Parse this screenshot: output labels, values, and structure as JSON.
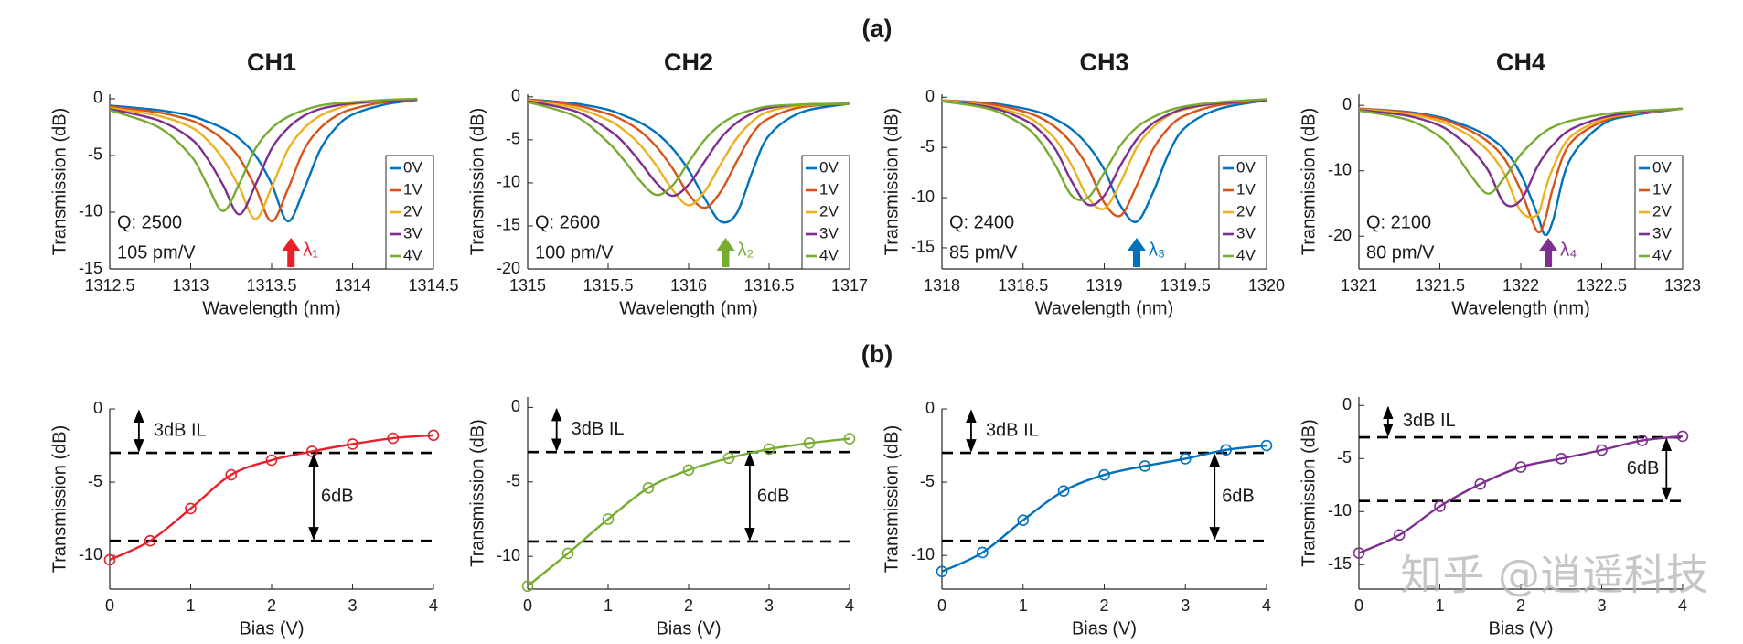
{
  "panel_labels": [
    "(a)",
    "(b)"
  ],
  "watermark": "知乎 @逍遥科技",
  "chart_data": [
    {
      "type": "line",
      "title": "CH1",
      "xlabel": "Wavelength (nm)",
      "ylabel": "Transmission (dB)",
      "x": [
        1312.5,
        1312.8,
        1313.0,
        1313.1,
        1313.2,
        1313.3,
        1313.4,
        1313.5,
        1313.6,
        1313.7,
        1313.8,
        1313.9,
        1314.0,
        1314.2,
        1314.4
      ],
      "series": [
        {
          "name": "0V",
          "color": "#0072BD",
          "values": [
            -0.6,
            -1.0,
            -1.5,
            -2.0,
            -2.6,
            -3.5,
            -5.0,
            -7.5,
            -10.8,
            -8.0,
            -4.5,
            -2.5,
            -1.4,
            -0.5,
            -0.1
          ]
        },
        {
          "name": "1V",
          "color": "#D95319",
          "values": [
            -0.7,
            -1.2,
            -1.9,
            -2.6,
            -3.6,
            -5.2,
            -7.8,
            -10.8,
            -8.0,
            -4.5,
            -2.6,
            -1.5,
            -0.9,
            -0.3,
            -0.1
          ]
        },
        {
          "name": "2V",
          "color": "#EDB120",
          "values": [
            -0.8,
            -1.5,
            -2.5,
            -3.6,
            -5.3,
            -7.8,
            -10.6,
            -7.8,
            -4.5,
            -2.6,
            -1.5,
            -0.9,
            -0.5,
            -0.2,
            -0.1
          ]
        },
        {
          "name": "3V",
          "color": "#7E2F8E",
          "values": [
            -0.9,
            -1.9,
            -3.5,
            -5.2,
            -7.6,
            -10.2,
            -7.6,
            -4.4,
            -2.6,
            -1.5,
            -0.9,
            -0.6,
            -0.4,
            -0.2,
            -0.1
          ]
        },
        {
          "name": "4V",
          "color": "#77AC30",
          "values": [
            -1.0,
            -2.5,
            -5.0,
            -7.5,
            -9.9,
            -7.5,
            -4.4,
            -2.6,
            -1.6,
            -1.0,
            -0.6,
            -0.4,
            -0.3,
            -0.1,
            0
          ]
        }
      ],
      "xlim": [
        1312.5,
        1314.5
      ],
      "xticks": [
        1312.5,
        1313,
        1313.5,
        1314,
        1314.5
      ],
      "ylim": [
        -15,
        0.4
      ],
      "yticks": [
        0,
        -5,
        -10,
        -15
      ],
      "legend": "lower right",
      "annotations": [
        "Q: 2500",
        "105 pm/V"
      ],
      "marker": {
        "label": "λ₁",
        "x": 1313.62,
        "color": "#E8202A"
      }
    },
    {
      "type": "line",
      "title": "CH2",
      "xlabel": "Wavelength (nm)",
      "ylabel": "Transmission (dB)",
      "x": [
        1315,
        1315.3,
        1315.5,
        1315.6,
        1315.7,
        1315.8,
        1315.9,
        1316.0,
        1316.1,
        1316.2,
        1316.3,
        1316.4,
        1316.5,
        1316.7,
        1317
      ],
      "series": [
        {
          "name": "0V",
          "color": "#0072BD",
          "values": [
            -0.3,
            -0.8,
            -1.5,
            -2.2,
            -3.0,
            -4.2,
            -6.0,
            -8.5,
            -11.8,
            -14.5,
            -13.5,
            -8.5,
            -4.5,
            -1.8,
            -0.8
          ]
        },
        {
          "name": "1V",
          "color": "#D95319",
          "values": [
            -0.3,
            -1.0,
            -2.0,
            -2.8,
            -4.0,
            -5.8,
            -8.3,
            -11.3,
            -12.9,
            -11.0,
            -7.5,
            -4.2,
            -2.5,
            -1.2,
            -0.8
          ]
        },
        {
          "name": "2V",
          "color": "#EDB120",
          "values": [
            -0.4,
            -1.3,
            -2.7,
            -3.9,
            -5.6,
            -8.0,
            -10.8,
            -12.6,
            -11.0,
            -7.8,
            -4.8,
            -2.8,
            -1.7,
            -1.0,
            -0.8
          ]
        },
        {
          "name": "3V",
          "color": "#7E2F8E",
          "values": [
            -0.5,
            -1.7,
            -3.8,
            -5.4,
            -7.6,
            -10.0,
            -11.5,
            -10.2,
            -7.5,
            -4.8,
            -3.0,
            -1.9,
            -1.3,
            -0.9,
            -0.8
          ]
        },
        {
          "name": "4V",
          "color": "#77AC30",
          "values": [
            -0.6,
            -2.3,
            -5.3,
            -7.4,
            -9.8,
            -11.4,
            -10.3,
            -7.6,
            -5.0,
            -3.2,
            -2.1,
            -1.5,
            -1.1,
            -0.9,
            -0.8
          ]
        }
      ],
      "xlim": [
        1315,
        1317
      ],
      "xticks": [
        1315,
        1315.5,
        1316,
        1316.5,
        1317
      ],
      "ylim": [
        -20,
        0.3
      ],
      "yticks": [
        0,
        -5,
        -10,
        -15,
        -20
      ],
      "legend": "lower right",
      "annotations": [
        "Q: 2600",
        "100 pm/V"
      ],
      "marker": {
        "label": "λ₂",
        "x": 1316.23,
        "color": "#77AC30"
      }
    },
    {
      "type": "line",
      "title": "CH3",
      "xlabel": "Wavelength (nm)",
      "ylabel": "Transmission (dB)",
      "x": [
        1318,
        1318.3,
        1318.5,
        1318.6,
        1318.7,
        1318.8,
        1318.9,
        1319.0,
        1319.1,
        1319.2,
        1319.3,
        1319.4,
        1319.5,
        1319.7,
        1320
      ],
      "series": [
        {
          "name": "0V",
          "color": "#0072BD",
          "values": [
            -0.3,
            -0.6,
            -1.1,
            -1.5,
            -2.2,
            -3.2,
            -4.8,
            -7.2,
            -10.8,
            -12.4,
            -9.5,
            -5.5,
            -3.0,
            -1.2,
            -0.3
          ]
        },
        {
          "name": "1V",
          "color": "#D95319",
          "values": [
            -0.3,
            -0.7,
            -1.4,
            -2.0,
            -3.0,
            -4.6,
            -7.0,
            -10.5,
            -11.8,
            -8.8,
            -5.2,
            -3.0,
            -1.8,
            -0.8,
            -0.3
          ]
        },
        {
          "name": "2V",
          "color": "#EDB120",
          "values": [
            -0.3,
            -0.9,
            -1.8,
            -2.7,
            -4.2,
            -6.8,
            -10.0,
            -11.1,
            -8.5,
            -5.0,
            -3.0,
            -1.8,
            -1.2,
            -0.6,
            -0.3
          ]
        },
        {
          "name": "3V",
          "color": "#7E2F8E",
          "values": [
            -0.4,
            -1.0,
            -2.2,
            -3.3,
            -5.2,
            -8.4,
            -10.7,
            -9.8,
            -6.8,
            -4.2,
            -2.6,
            -1.7,
            -1.1,
            -0.6,
            -0.3
          ]
        },
        {
          "name": "4V",
          "color": "#77AC30",
          "values": [
            -0.4,
            -1.2,
            -2.8,
            -4.3,
            -6.8,
            -9.8,
            -10.0,
            -7.5,
            -4.8,
            -3.0,
            -2.0,
            -1.3,
            -0.9,
            -0.5,
            -0.2
          ]
        }
      ],
      "xlim": [
        1318,
        1320
      ],
      "xticks": [
        1318,
        1318.5,
        1319,
        1319.5,
        1320
      ],
      "ylim": [
        -17.1,
        0.3
      ],
      "yticks": [
        0,
        -5,
        -10,
        -15
      ],
      "legend": "lower right",
      "annotations": [
        "Q: 2400",
        "85 pm/V"
      ],
      "marker": {
        "label": "λ₃",
        "x": 1319.2,
        "color": "#0072BD"
      }
    },
    {
      "type": "line",
      "title": "CH4",
      "xlabel": "Wavelength (nm)",
      "ylabel": "Transmission (dB)",
      "x": [
        1321,
        1321.3,
        1321.5,
        1321.6,
        1321.7,
        1321.8,
        1321.9,
        1322.0,
        1322.1,
        1322.15,
        1322.2,
        1322.3,
        1322.5,
        1322.7,
        1323
      ],
      "series": [
        {
          "name": "0V",
          "color": "#0072BD",
          "values": [
            -0.5,
            -1.0,
            -1.8,
            -2.6,
            -3.5,
            -4.8,
            -6.8,
            -10.5,
            -16.5,
            -19.8,
            -17.5,
            -8.5,
            -3.0,
            -1.5,
            -0.5
          ]
        },
        {
          "name": "1V",
          "color": "#D95319",
          "values": [
            -0.5,
            -1.1,
            -2.0,
            -2.9,
            -4.0,
            -5.6,
            -8.2,
            -13.0,
            -19.2,
            -17.5,
            -12.5,
            -6.0,
            -2.5,
            -1.3,
            -0.5
          ]
        },
        {
          "name": "2V",
          "color": "#EDB120",
          "values": [
            -0.6,
            -1.3,
            -2.4,
            -3.5,
            -4.9,
            -7.0,
            -10.5,
            -16.2,
            -16.8,
            -13.0,
            -9.5,
            -5.0,
            -2.2,
            -1.2,
            -0.5
          ]
        },
        {
          "name": "3V",
          "color": "#7E2F8E",
          "values": [
            -0.7,
            -1.6,
            -3.1,
            -4.7,
            -6.8,
            -10.0,
            -15.0,
            -14.5,
            -9.5,
            -7.5,
            -6.0,
            -3.8,
            -1.9,
            -1.1,
            -0.5
          ]
        },
        {
          "name": "4V",
          "color": "#77AC30",
          "values": [
            -0.8,
            -2.2,
            -4.8,
            -7.5,
            -11.0,
            -13.5,
            -11.0,
            -7.5,
            -5.0,
            -4.0,
            -3.3,
            -2.4,
            -1.4,
            -0.9,
            -0.5
          ]
        }
      ],
      "xlim": [
        1321,
        1323
      ],
      "xticks": [
        1321,
        1321.5,
        1322,
        1322.5,
        1323
      ],
      "ylim": [
        -25,
        1.7
      ],
      "yticks": [
        0,
        -10,
        -20
      ],
      "legend": "lower right",
      "annotations": [
        "Q: 2100",
        "80 pm/V"
      ],
      "marker": {
        "label": "λ₄",
        "x": 1322.17,
        "color": "#7E2F8E"
      }
    },
    {
      "type": "line",
      "markers": true,
      "xlabel": "Bias (V)",
      "ylabel": "Transmission (dB)",
      "x": [
        0,
        0.5,
        1,
        1.5,
        2,
        2.5,
        3,
        3.5,
        4
      ],
      "series": [
        {
          "color": "#E8202A",
          "values": [
            -10.3,
            -9.0,
            -6.8,
            -4.5,
            -3.5,
            -2.9,
            -2.4,
            -2.0,
            -1.8
          ]
        }
      ],
      "xlim": [
        0,
        4
      ],
      "xticks": [
        0,
        1,
        2,
        3,
        4
      ],
      "ylim": [
        -12.3,
        0
      ],
      "yticks": [
        0,
        -5,
        -10
      ],
      "hlines": [
        -3,
        -9
      ],
      "annotations": [
        "3dB IL",
        "6dB"
      ]
    },
    {
      "type": "line",
      "markers": true,
      "xlabel": "Bias (V)",
      "ylabel": "Transmission (dB)",
      "x": [
        0,
        0.5,
        1,
        1.5,
        2,
        2.5,
        3,
        3.5,
        4
      ],
      "series": [
        {
          "color": "#77AC30",
          "values": [
            -12.0,
            -9.8,
            -7.5,
            -5.4,
            -4.2,
            -3.4,
            -2.8,
            -2.4,
            -2.1
          ]
        }
      ],
      "xlim": [
        0,
        4
      ],
      "xticks": [
        0,
        1,
        2,
        3,
        4
      ],
      "ylim": [
        -12.2,
        0.7
      ],
      "yticks": [
        0,
        -5,
        -10
      ],
      "hlines": [
        -3,
        -9
      ],
      "annotations": [
        "3dB IL",
        "6dB"
      ]
    },
    {
      "type": "line",
      "markers": true,
      "xlabel": "Bias (V)",
      "ylabel": "Transmission (dB)",
      "x": [
        0,
        0.5,
        1,
        1.5,
        2,
        2.5,
        3,
        3.5,
        4
      ],
      "series": [
        {
          "color": "#0072BD",
          "values": [
            -11.1,
            -9.8,
            -7.6,
            -5.6,
            -4.5,
            -3.9,
            -3.4,
            -2.8,
            -2.5
          ]
        }
      ],
      "xlim": [
        0,
        4
      ],
      "xticks": [
        0,
        1,
        2,
        3,
        4
      ],
      "ylim": [
        -12.3,
        0
      ],
      "yticks": [
        0,
        -5,
        -10
      ],
      "hlines": [
        -3,
        -9
      ],
      "annotations": [
        "3dB IL",
        "6dB"
      ]
    },
    {
      "type": "line",
      "markers": true,
      "xlabel": "Bias (V)",
      "ylabel": "Transmission (dB)",
      "x": [
        0,
        0.5,
        1,
        1.5,
        2,
        2.5,
        3,
        3.5,
        4
      ],
      "series": [
        {
          "color": "#7E2F8E",
          "values": [
            -13.9,
            -12.2,
            -9.5,
            -7.4,
            -5.8,
            -5.0,
            -4.2,
            -3.3,
            -2.9
          ]
        }
      ],
      "xlim": [
        0,
        4
      ],
      "xticks": [
        0,
        1,
        2,
        3,
        4
      ],
      "ylim": [
        -17.3,
        0.8
      ],
      "yticks": [
        0,
        -5,
        -10,
        -15
      ],
      "hlines": [
        -3,
        -9
      ],
      "annotations": [
        "3dB IL",
        "6dB"
      ]
    }
  ]
}
